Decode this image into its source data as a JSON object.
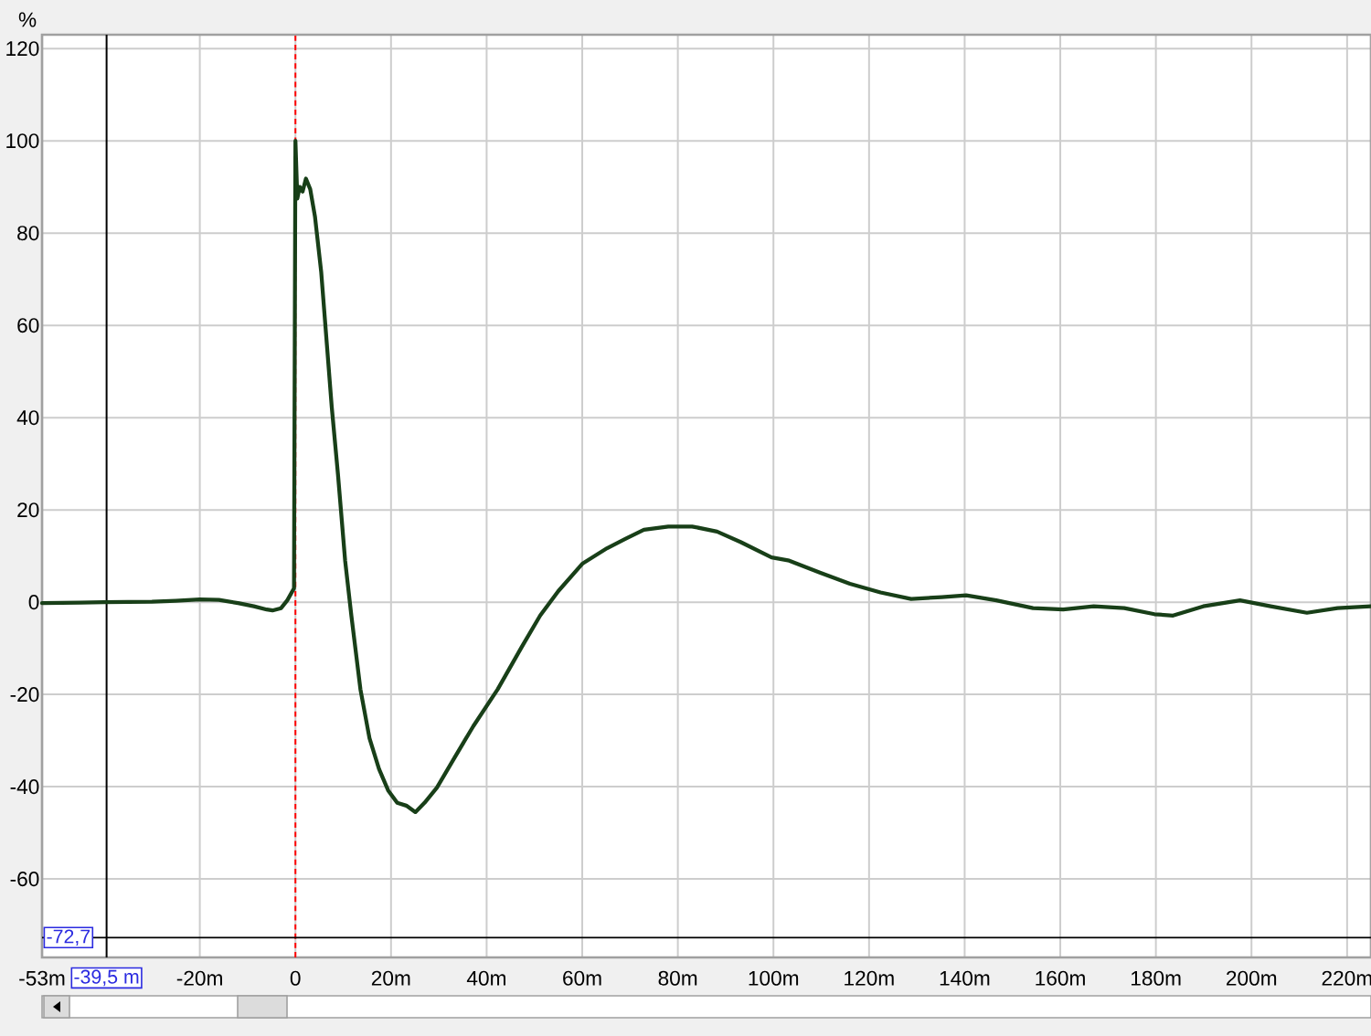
{
  "chart_data": {
    "type": "line",
    "ylabel": "%",
    "x": [
      -53,
      -45,
      -40,
      -30,
      -25,
      -20,
      -16,
      -12,
      -8.7,
      -6,
      -4.8,
      -3,
      -1.7,
      -0.3,
      0,
      0.4,
      0.9,
      1.5,
      2.2,
      3.1,
      4.1,
      5.4,
      6.6,
      7.6,
      8.9,
      10.4,
      11.7,
      13.6,
      15.5,
      17.5,
      19.4,
      21.3,
      23.2,
      25.1,
      27,
      29.6,
      33.4,
      37.2,
      42.3,
      47.4,
      51.2,
      55,
      60.1,
      65.2,
      69,
      72.9,
      78,
      83,
      88.2,
      93.2,
      99.6,
      103.3,
      109.7,
      116,
      122.4,
      128.8,
      135.2,
      140.3,
      146.6,
      154.3,
      160.6,
      167,
      173.4,
      179.7,
      183.6,
      189.9,
      197.6,
      204,
      211.6,
      218,
      225
    ],
    "series": [
      {
        "color": "#183f18",
        "values": [
          -0.2,
          -0.1,
          0,
          0.1,
          0.3,
          0.6,
          0.5,
          -0.2,
          -0.9,
          -1.6,
          -1.8,
          -1.3,
          0.4,
          3,
          100,
          87.5,
          90,
          89,
          91.8,
          89.5,
          83.5,
          71.5,
          55.6,
          42.3,
          27.7,
          9,
          -2.9,
          -18.9,
          -29.5,
          -36.2,
          -40.8,
          -43.5,
          -44.1,
          -45.5,
          -43.5,
          -40.2,
          -33.5,
          -26.9,
          -18.9,
          -9.6,
          -2.9,
          2.4,
          8.4,
          11.7,
          13.7,
          15.7,
          16.4,
          16.4,
          15.3,
          13,
          9.7,
          9,
          6.4,
          4,
          2.1,
          0.7,
          1.1,
          1.5,
          0.4,
          -1.3,
          -1.6,
          -0.9,
          -1.3,
          -2.6,
          -2.9,
          -0.9,
          0.4,
          -0.9,
          -2.3,
          -1.3,
          -0.9
        ]
      }
    ],
    "xlim": [
      -53,
      225
    ],
    "ylim": [
      -77,
      123
    ],
    "xticks": [
      {
        "value": -53,
        "label": "-53m"
      },
      {
        "value": -20,
        "label": "-20m"
      },
      0,
      {
        "value": 20,
        "label": "20m"
      },
      {
        "value": 40,
        "label": "40m"
      },
      {
        "value": 60,
        "label": "60m"
      },
      {
        "value": 80,
        "label": "80m"
      },
      {
        "value": 100,
        "label": "100m"
      },
      {
        "value": 120,
        "label": "120m"
      },
      {
        "value": 140,
        "label": "140m"
      },
      {
        "value": 160,
        "label": "160m"
      },
      {
        "value": 180,
        "label": "180m"
      },
      {
        "value": 200,
        "label": "200m"
      },
      {
        "value": 220,
        "label": "220m"
      }
    ],
    "yticks": [
      -60,
      -40,
      -20,
      0,
      20,
      40,
      60,
      80,
      100,
      120
    ],
    "grid": true,
    "ref_lines": [
      {
        "axis": "x",
        "value": 0,
        "color": "#ff0000",
        "line_style": "dashed"
      },
      {
        "axis": "x",
        "value": -39.5,
        "label": "-39,5 m",
        "color": "#000000",
        "line_style": "solid"
      },
      {
        "axis": "y",
        "value": -72.7,
        "label": "-72,7",
        "color": "#000000",
        "line_style": "solid"
      }
    ]
  }
}
